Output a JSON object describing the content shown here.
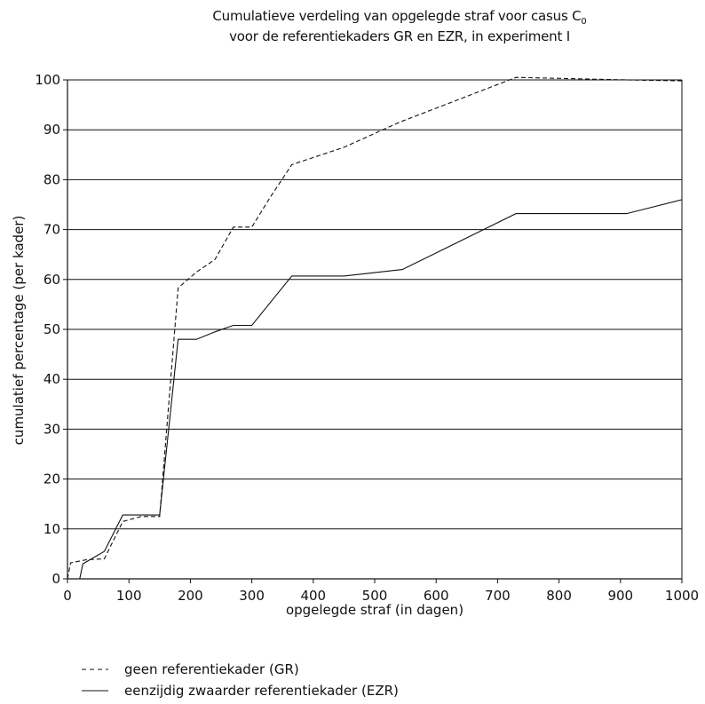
{
  "chart_data": {
    "type": "line",
    "title_line1": "Cumulatieve verdeling van opgelegde straf voor casus C",
    "title_subscript": "0",
    "title_line2": "voor de referentiekaders GR en EZR, in experiment I",
    "xlabel": "opgelegde straf (in dagen)",
    "ylabel": "cumulatief percentage (per kader)",
    "xlim": [
      0,
      1000
    ],
    "ylim": [
      0,
      100
    ],
    "xticks": [
      "0",
      "100",
      "200",
      "300",
      "400",
      "500",
      "600",
      "700",
      "800",
      "900",
      "1000"
    ],
    "yticks": [
      "0",
      "10",
      "20",
      "30",
      "40",
      "50",
      "60",
      "70",
      "80",
      "90",
      "100"
    ],
    "grid": "horizontal",
    "legend_position": "bottom-left",
    "series": [
      {
        "name": "geen referentiekader (GR)",
        "style": "dashed",
        "color": "#111111",
        "x": [
          0,
          5,
          30,
          60,
          90,
          120,
          150,
          180,
          210,
          240,
          270,
          300,
          330,
          365,
          450,
          540,
          730,
          910,
          1000
        ],
        "y": [
          0,
          3.2,
          3.8,
          4.0,
          11.5,
          12.5,
          12.5,
          58.3,
          61.5,
          64.0,
          70.5,
          70.5,
          76.5,
          83.0,
          86.5,
          91.5,
          100.5,
          100,
          99.8
        ]
      },
      {
        "name": "eenzijdig zwaarder referentiekader (EZR)",
        "style": "solid",
        "color": "#111111",
        "x": [
          0,
          20,
          25,
          60,
          90,
          120,
          150,
          180,
          210,
          240,
          270,
          300,
          365,
          450,
          545,
          730,
          910,
          1000
        ],
        "y": [
          0,
          0,
          3.0,
          5.5,
          12.8,
          12.8,
          12.8,
          48.0,
          48.0,
          49.5,
          50.8,
          50.8,
          60.7,
          60.7,
          62.0,
          73.2,
          73.2,
          76.0
        ]
      }
    ]
  }
}
